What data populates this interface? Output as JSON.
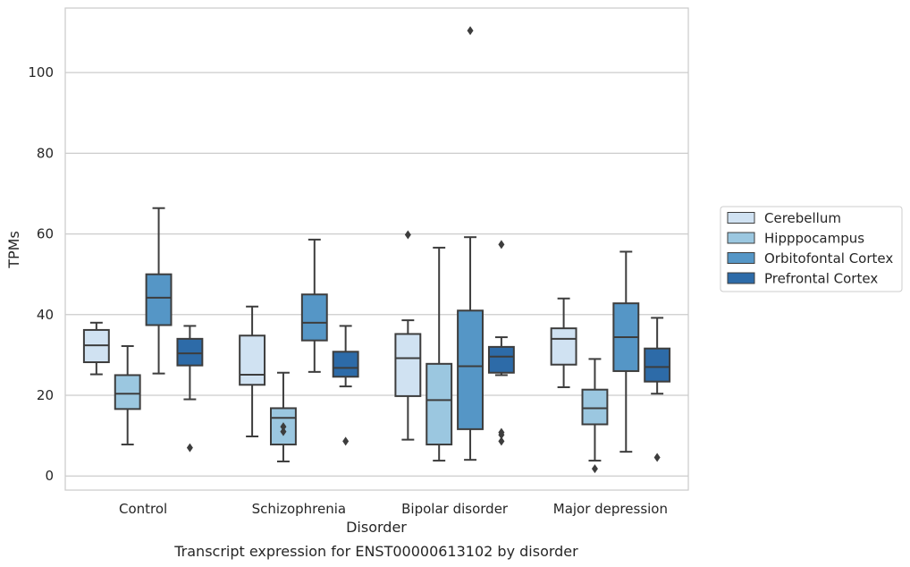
{
  "chart_data": {
    "type": "box",
    "title": "",
    "caption": "Transcript expression for ENST00000613102 by disorder",
    "xlabel": "Disorder",
    "ylabel": "TPMs",
    "ylim": [
      -3.5,
      116
    ],
    "yticks": [
      0,
      20,
      40,
      60,
      80,
      100
    ],
    "grid": "horizontal",
    "legend_position": "right",
    "categories": [
      "Control",
      "Schizophrenia",
      "Bipolar disorder",
      "Major depression"
    ],
    "series": [
      {
        "name": "Cerebellum",
        "color": "#d0e2f2",
        "boxes": [
          {
            "whislo": 25.2,
            "q1": 28.2,
            "med": 32.4,
            "q3": 36.2,
            "whishi": 38.0,
            "fliers": []
          },
          {
            "whislo": 9.8,
            "q1": 22.6,
            "med": 25.1,
            "q3": 34.8,
            "whishi": 42.0,
            "fliers": []
          },
          {
            "whislo": 9.0,
            "q1": 19.8,
            "med": 29.2,
            "q3": 35.2,
            "whishi": 38.6,
            "fliers": [
              59.8
            ]
          },
          {
            "whislo": 22.0,
            "q1": 27.6,
            "med": 34.0,
            "q3": 36.6,
            "whishi": 44.0,
            "fliers": []
          }
        ]
      },
      {
        "name": "Hipppocampus",
        "color": "#9bc7e0",
        "boxes": [
          {
            "whislo": 7.8,
            "q1": 16.6,
            "med": 20.4,
            "q3": 25.0,
            "whishi": 32.2,
            "fliers": []
          },
          {
            "whislo": 3.6,
            "q1": 7.8,
            "med": 14.4,
            "q3": 16.8,
            "whishi": 25.6,
            "fliers": [
              11.0,
              12.2
            ]
          },
          {
            "whislo": 3.8,
            "q1": 7.8,
            "med": 18.8,
            "q3": 27.8,
            "whishi": 56.6,
            "fliers": []
          },
          {
            "whislo": 3.8,
            "q1": 12.8,
            "med": 16.8,
            "q3": 21.4,
            "whishi": 29.0,
            "fliers": [
              1.8
            ]
          }
        ]
      },
      {
        "name": "Orbitofontal Cortex",
        "color": "#5596c6",
        "boxes": [
          {
            "whislo": 25.4,
            "q1": 37.4,
            "med": 44.2,
            "q3": 50.0,
            "whishi": 66.4,
            "fliers": []
          },
          {
            "whislo": 25.8,
            "q1": 33.6,
            "med": 38.0,
            "q3": 45.0,
            "whishi": 58.6,
            "fliers": []
          },
          {
            "whislo": 4.0,
            "q1": 11.6,
            "med": 27.2,
            "q3": 41.0,
            "whishi": 59.2,
            "fliers": [
              110.4
            ]
          },
          {
            "whislo": 6.0,
            "q1": 26.0,
            "med": 34.4,
            "q3": 42.8,
            "whishi": 55.6,
            "fliers": []
          }
        ]
      },
      {
        "name": "Prefrontal Cortex",
        "color": "#2d6ba8",
        "boxes": [
          {
            "whislo": 19.0,
            "q1": 27.4,
            "med": 30.4,
            "q3": 34.0,
            "whishi": 37.2,
            "fliers": [
              7.0
            ]
          },
          {
            "whislo": 22.2,
            "q1": 24.6,
            "med": 26.8,
            "q3": 30.8,
            "whishi": 37.2,
            "fliers": [
              8.6
            ]
          },
          {
            "whislo": 25.0,
            "q1": 25.6,
            "med": 29.6,
            "q3": 32.0,
            "whishi": 34.4,
            "fliers": [
              8.6,
              10.2,
              10.8,
              57.4
            ]
          },
          {
            "whislo": 20.4,
            "q1": 23.4,
            "med": 27.0,
            "q3": 31.6,
            "whishi": 39.2,
            "fliers": [
              4.6
            ]
          }
        ]
      }
    ]
  }
}
